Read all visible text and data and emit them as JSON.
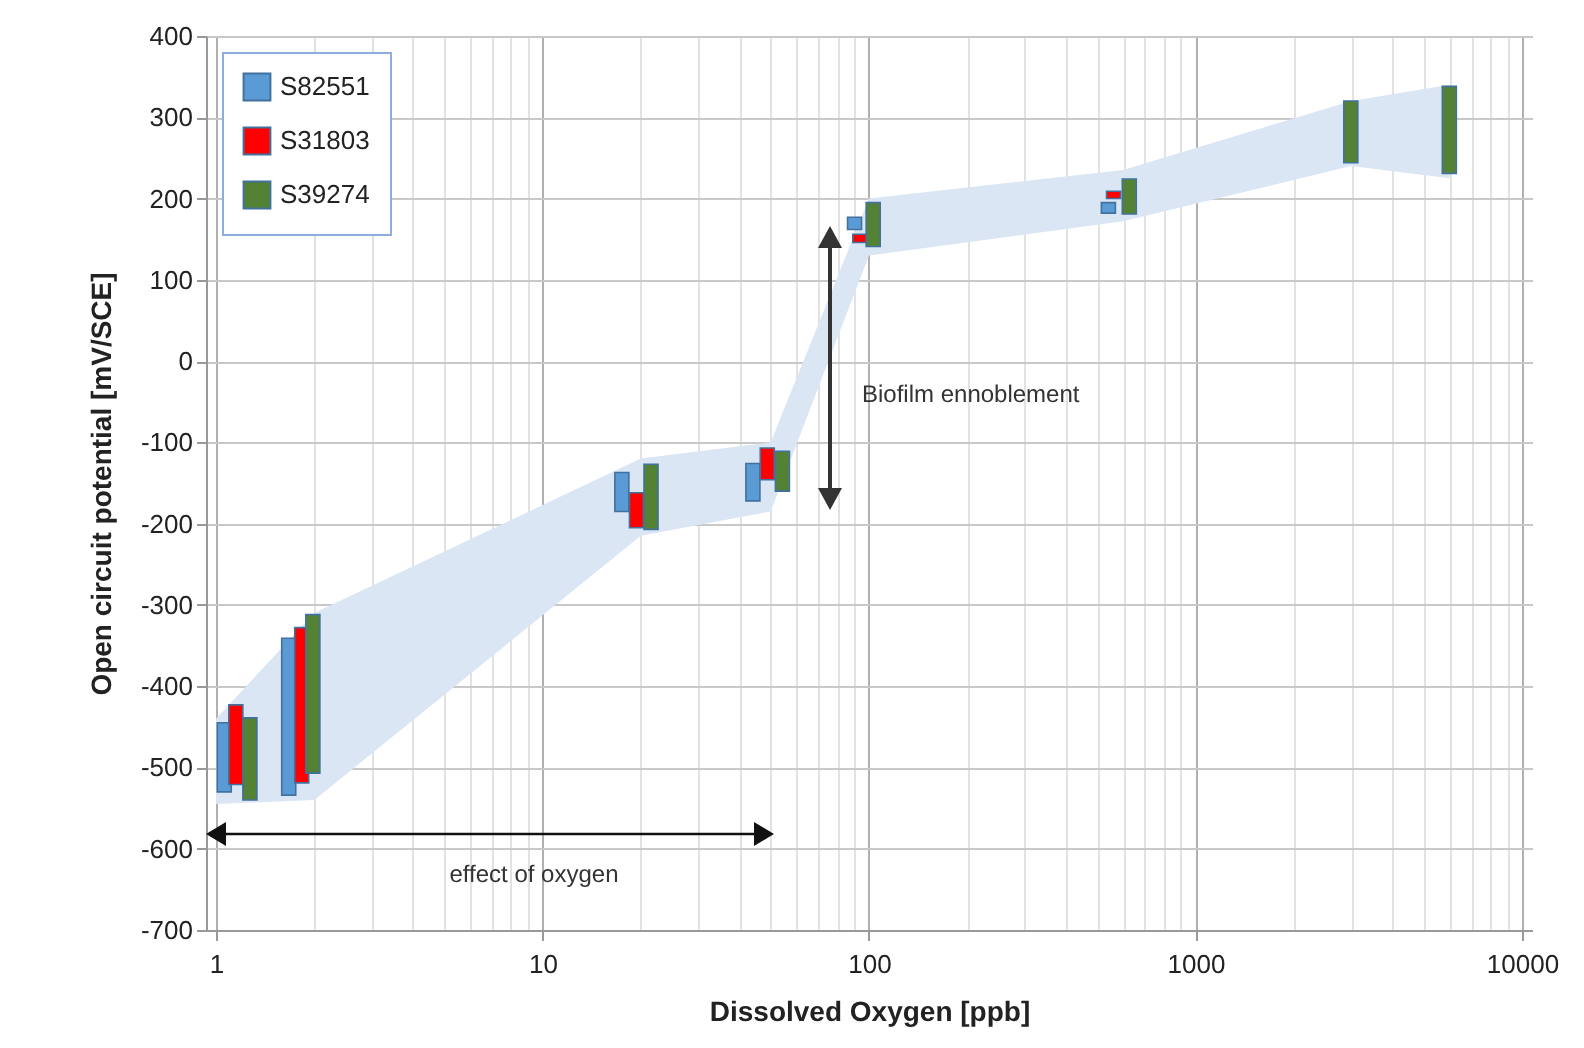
{
  "chart_data": {
    "type": "bar",
    "xlabel": "Dissolved Oxygen [ppb]",
    "ylabel": "Open circuit potential [mV/SCE]",
    "log": "x",
    "xlim": [
      1,
      10000
    ],
    "xticks": [
      1,
      {
        "value": 2,
        "label": null
      },
      {
        "value": 3,
        "label": null
      },
      {
        "value": 4,
        "label": null
      },
      {
        "value": 5,
        "label": null
      },
      {
        "value": 6,
        "label": null
      },
      {
        "value": 7,
        "label": null
      },
      {
        "value": 8,
        "label": null
      },
      {
        "value": 9,
        "label": null
      },
      10,
      {
        "value": 20,
        "label": null
      },
      {
        "value": 30,
        "label": null
      },
      {
        "value": 40,
        "label": null
      },
      {
        "value": 50,
        "label": null
      },
      {
        "value": 60,
        "label": null
      },
      {
        "value": 70,
        "label": null
      },
      {
        "value": 80,
        "label": null
      },
      {
        "value": 90,
        "label": null
      },
      100,
      {
        "value": 200,
        "label": null
      },
      {
        "value": 300,
        "label": null
      },
      {
        "value": 400,
        "label": null
      },
      {
        "value": 500,
        "label": null
      },
      {
        "value": 600,
        "label": null
      },
      {
        "value": 700,
        "label": null
      },
      {
        "value": 800,
        "label": null
      },
      {
        "value": 900,
        "label": null
      },
      1000,
      {
        "value": 2000,
        "label": null
      },
      {
        "value": 3000,
        "label": null
      },
      {
        "value": 4000,
        "label": null
      },
      {
        "value": 5000,
        "label": null
      },
      {
        "value": 6000,
        "label": null
      },
      {
        "value": 7000,
        "label": null
      },
      {
        "value": 8000,
        "label": null
      },
      {
        "value": 9000,
        "label": null
      },
      10000
    ],
    "ylim": [
      -700,
      400
    ],
    "yticks": [
      -700,
      -600,
      -500,
      -400,
      -300,
      -200,
      -100,
      0,
      100,
      200,
      300,
      400
    ],
    "grid": true,
    "legend": "top left",
    "series": [
      {
        "type": "area",
        "color": "#dae6f4",
        "x": [
          1,
          2,
          20,
          50,
          100,
          600,
          3000,
          6000,
          6000,
          3000,
          600,
          100,
          50,
          20,
          2,
          1
        ],
        "values": [
          -440,
          -310,
          -120,
          -100,
          200,
          235,
          320,
          340,
          225,
          240,
          172,
          130,
          -185,
          -215,
          -540,
          -545
        ]
      },
      {
        "name": "S82551",
        "color": "#5b9bd5",
        "x": [
          1.06,
          1.67,
          17.5,
          44.1,
          90.3,
          541
        ],
        "base": [
          -530,
          -534,
          -185,
          -172,
          162,
          182
        ],
        "values": [
          85,
          193,
          48,
          46,
          15,
          13
        ]
      },
      {
        "name": "S31803",
        "color": "#ff0000",
        "x": [
          1.15,
          1.83,
          19.4,
          48.8,
          93.7,
          561
        ],
        "base": [
          -521,
          -519,
          -205,
          -146,
          146,
          200
        ],
        "values": [
          98,
          191,
          43,
          39,
          10,
          9
        ]
      },
      {
        "name": "S39274",
        "color": "#548235",
        "x": [
          1.27,
          1.98,
          21.5,
          54.3,
          103,
          627,
          2990,
          5990
        ],
        "base": [
          -540,
          -507,
          -207,
          -160,
          141,
          181,
          244,
          231
        ],
        "values": [
          101,
          195,
          80,
          49,
          54,
          43,
          76,
          107
        ]
      }
    ],
    "annotations": [
      "Biofilm ennoblement",
      "effect of oxygen"
    ]
  }
}
